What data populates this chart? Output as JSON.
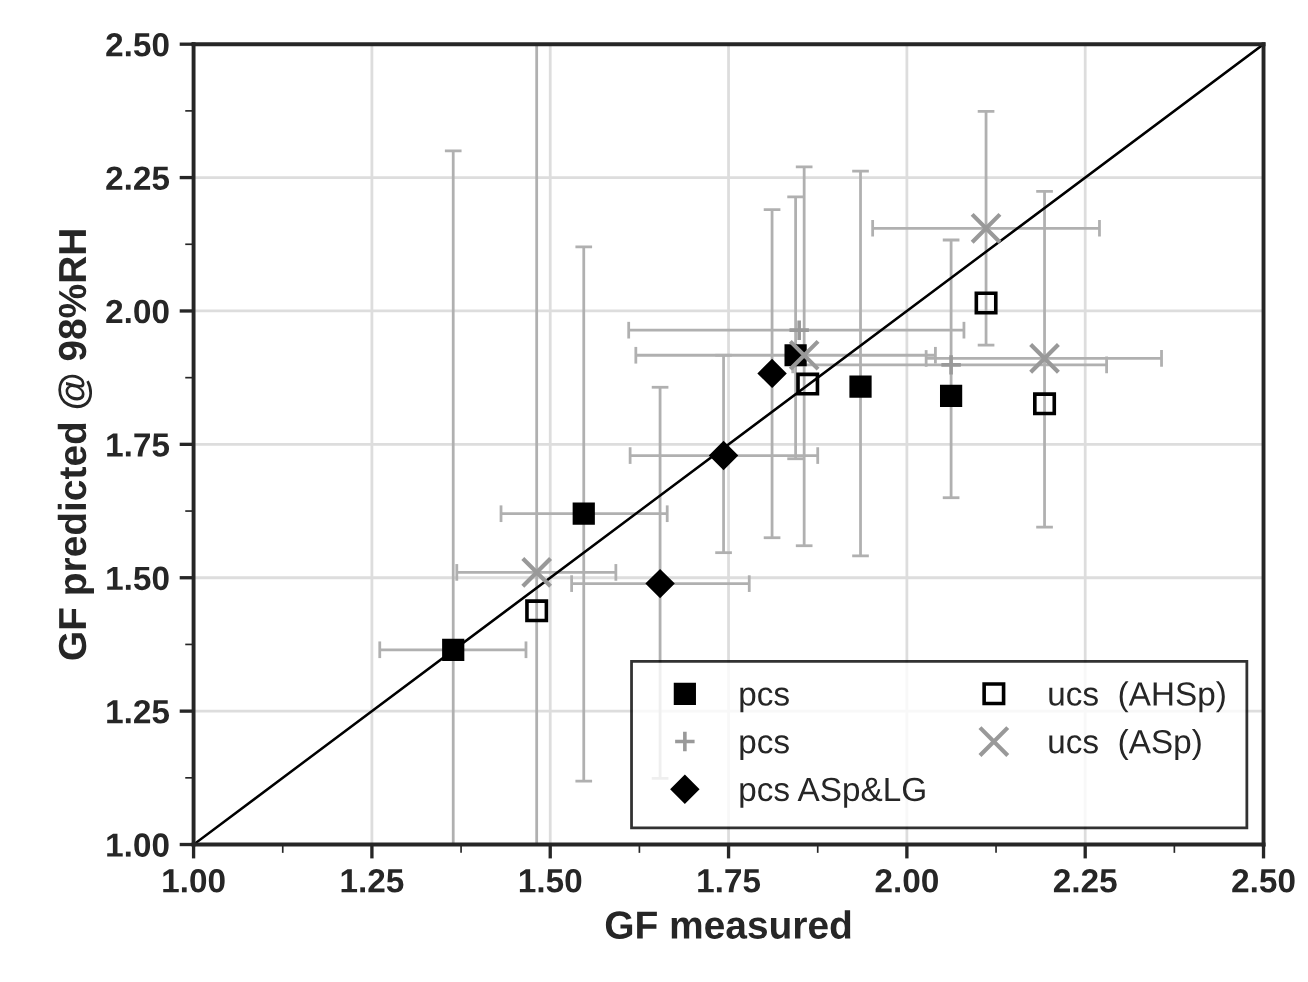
{
  "chart_data": {
    "type": "scatter",
    "xlabel": "GF measured",
    "ylabel": "GF predicted @ 98%RH",
    "xlim": [
      1.0,
      2.5
    ],
    "ylim": [
      1.0,
      2.5
    ],
    "xticks": [
      {
        "value": 1.0,
        "label": "1.00"
      },
      {
        "value": 1.25,
        "label": "1.25"
      },
      {
        "value": 1.5,
        "label": "1.50"
      },
      {
        "value": 1.75,
        "label": "1.75"
      },
      {
        "value": 2.0,
        "label": "2.00"
      },
      {
        "value": 2.25,
        "label": "2.25"
      },
      {
        "value": 2.5,
        "label": "2.50"
      }
    ],
    "yticks": [
      {
        "value": 1.0,
        "label": "1.00"
      },
      {
        "value": 1.25,
        "label": "1.25"
      },
      {
        "value": 1.5,
        "label": "1.50"
      },
      {
        "value": 1.75,
        "label": "1.75"
      },
      {
        "value": 2.0,
        "label": "2.00"
      },
      {
        "value": 2.25,
        "label": "2.25"
      },
      {
        "value": 2.5,
        "label": "2.50"
      }
    ],
    "grid": true,
    "legend": "bottom right",
    "series": [
      {
        "name": "pcs",
        "color": "#000000",
        "marker": "square",
        "x": [
          1.364,
          1.547,
          1.844,
          1.935,
          2.062
        ],
        "values": [
          1.365,
          1.62,
          1.917,
          1.858,
          1.841
        ],
        "errors": [
          [
            1.0,
            2.3
          ],
          [
            1.119,
            2.12
          ],
          [
            1.723,
            2.214
          ],
          [
            1.541,
            2.262
          ],
          [
            1.65,
            2.133
          ]
        ],
        "xerrors": [
          [
            1.261,
            1.466
          ],
          [
            1.431,
            1.664
          ],
          null,
          null,
          null
        ]
      },
      {
        "name": "pcs",
        "color": "#999999",
        "marker": "plus",
        "x": [
          1.849,
          2.062
        ],
        "values": [
          1.964,
          1.899
        ],
        "xerrors": [
          [
            1.61,
            2.08
          ],
          [
            1.84,
            2.28
          ]
        ]
      },
      {
        "name": "pcs ASp&LG",
        "color": "#000000",
        "marker": "diamond",
        "x": [
          1.654,
          1.743,
          1.811
        ],
        "values": [
          1.489,
          1.729,
          1.883
        ],
        "errors": [
          [
            1.124,
            1.857
          ],
          [
            1.547,
            1.917
          ],
          [
            1.575,
            2.19
          ]
        ],
        "xerrors": [
          [
            1.53,
            1.779
          ],
          [
            1.612,
            1.875
          ],
          null
        ]
      },
      {
        "name": "ucs  (AHSp)",
        "color": "#000000",
        "marker": "square-open",
        "x": [
          1.481,
          1.861,
          2.111,
          2.193
        ],
        "values": [
          1.438,
          1.863,
          2.015,
          1.826
        ]
      },
      {
        "name": "ucs  (ASp)",
        "color": "#999999",
        "marker": "cross",
        "x": [
          1.481,
          1.856,
          2.111,
          2.193
        ],
        "values": [
          1.51,
          1.917,
          2.155,
          1.911
        ],
        "errors": [
          [
            1.0,
            2.5
          ],
          [
            1.56,
            2.27
          ],
          [
            1.936,
            2.374
          ],
          [
            1.595,
            2.224
          ]
        ],
        "xerrors": [
          [
            1.369,
            1.592
          ],
          [
            1.62,
            2.04
          ],
          [
            1.952,
            2.27
          ],
          [
            2.027,
            2.357
          ]
        ]
      },
      {
        "type": "line",
        "color": "#000000",
        "x": [
          1.0,
          2.5
        ],
        "values": [
          1.0,
          2.5
        ]
      }
    ]
  }
}
